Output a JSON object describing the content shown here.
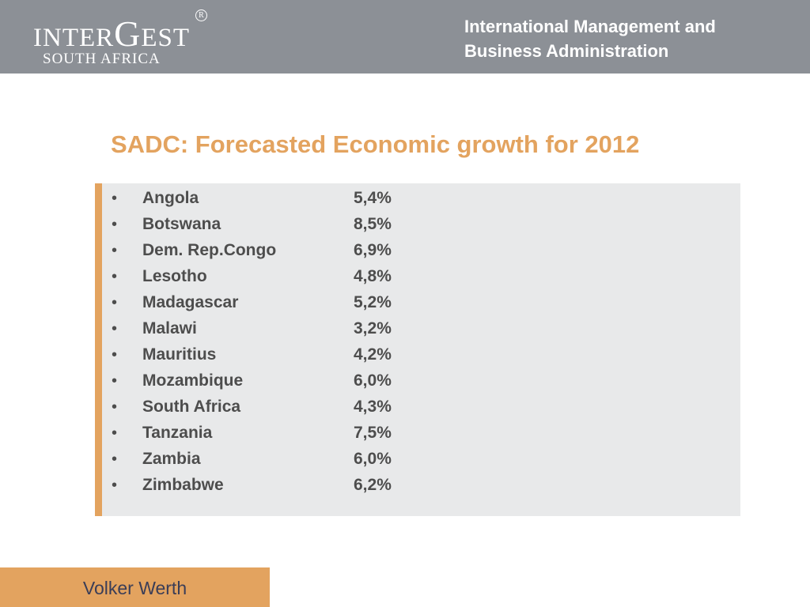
{
  "header": {
    "logo": {
      "part1": "INTER",
      "part2": "G",
      "part3": "EST",
      "registered": "R",
      "subtitle": "SOUTH AFRICA"
    },
    "title_line1": "International Management and",
    "title_line2": "Business Administration"
  },
  "slide": {
    "title": "SADC: Forecasted Economic growth for 2012",
    "bullet_char": "•",
    "items": [
      {
        "country": "Angola",
        "rate": "5,4%"
      },
      {
        "country": "Botswana",
        "rate": "8,5%"
      },
      {
        "country": "Dem. Rep.Congo",
        "rate": "6,9%"
      },
      {
        "country": "Lesotho",
        "rate": "4,8%"
      },
      {
        "country": "Madagascar",
        "rate": "5,2%"
      },
      {
        "country": "Malawi",
        "rate": "3,2%"
      },
      {
        "country": "Mauritius",
        "rate": "4,2%"
      },
      {
        "country": "Mozambique",
        "rate": "6,0%"
      },
      {
        "country": "South Africa",
        "rate": "4,3%"
      },
      {
        "country": "Tanzania",
        "rate": "7,5%"
      },
      {
        "country": "Zambia",
        "rate": "6,0%"
      },
      {
        "country": "Zimbabwe",
        "rate": "6,2%"
      }
    ]
  },
  "footer": {
    "author": "Volker Werth"
  },
  "colors": {
    "header_bg": "#8c9096",
    "accent": "#e3a35f",
    "content_bg": "#e8e9ea",
    "text": "#4d4d4d",
    "footer_text": "#3a3d57"
  }
}
